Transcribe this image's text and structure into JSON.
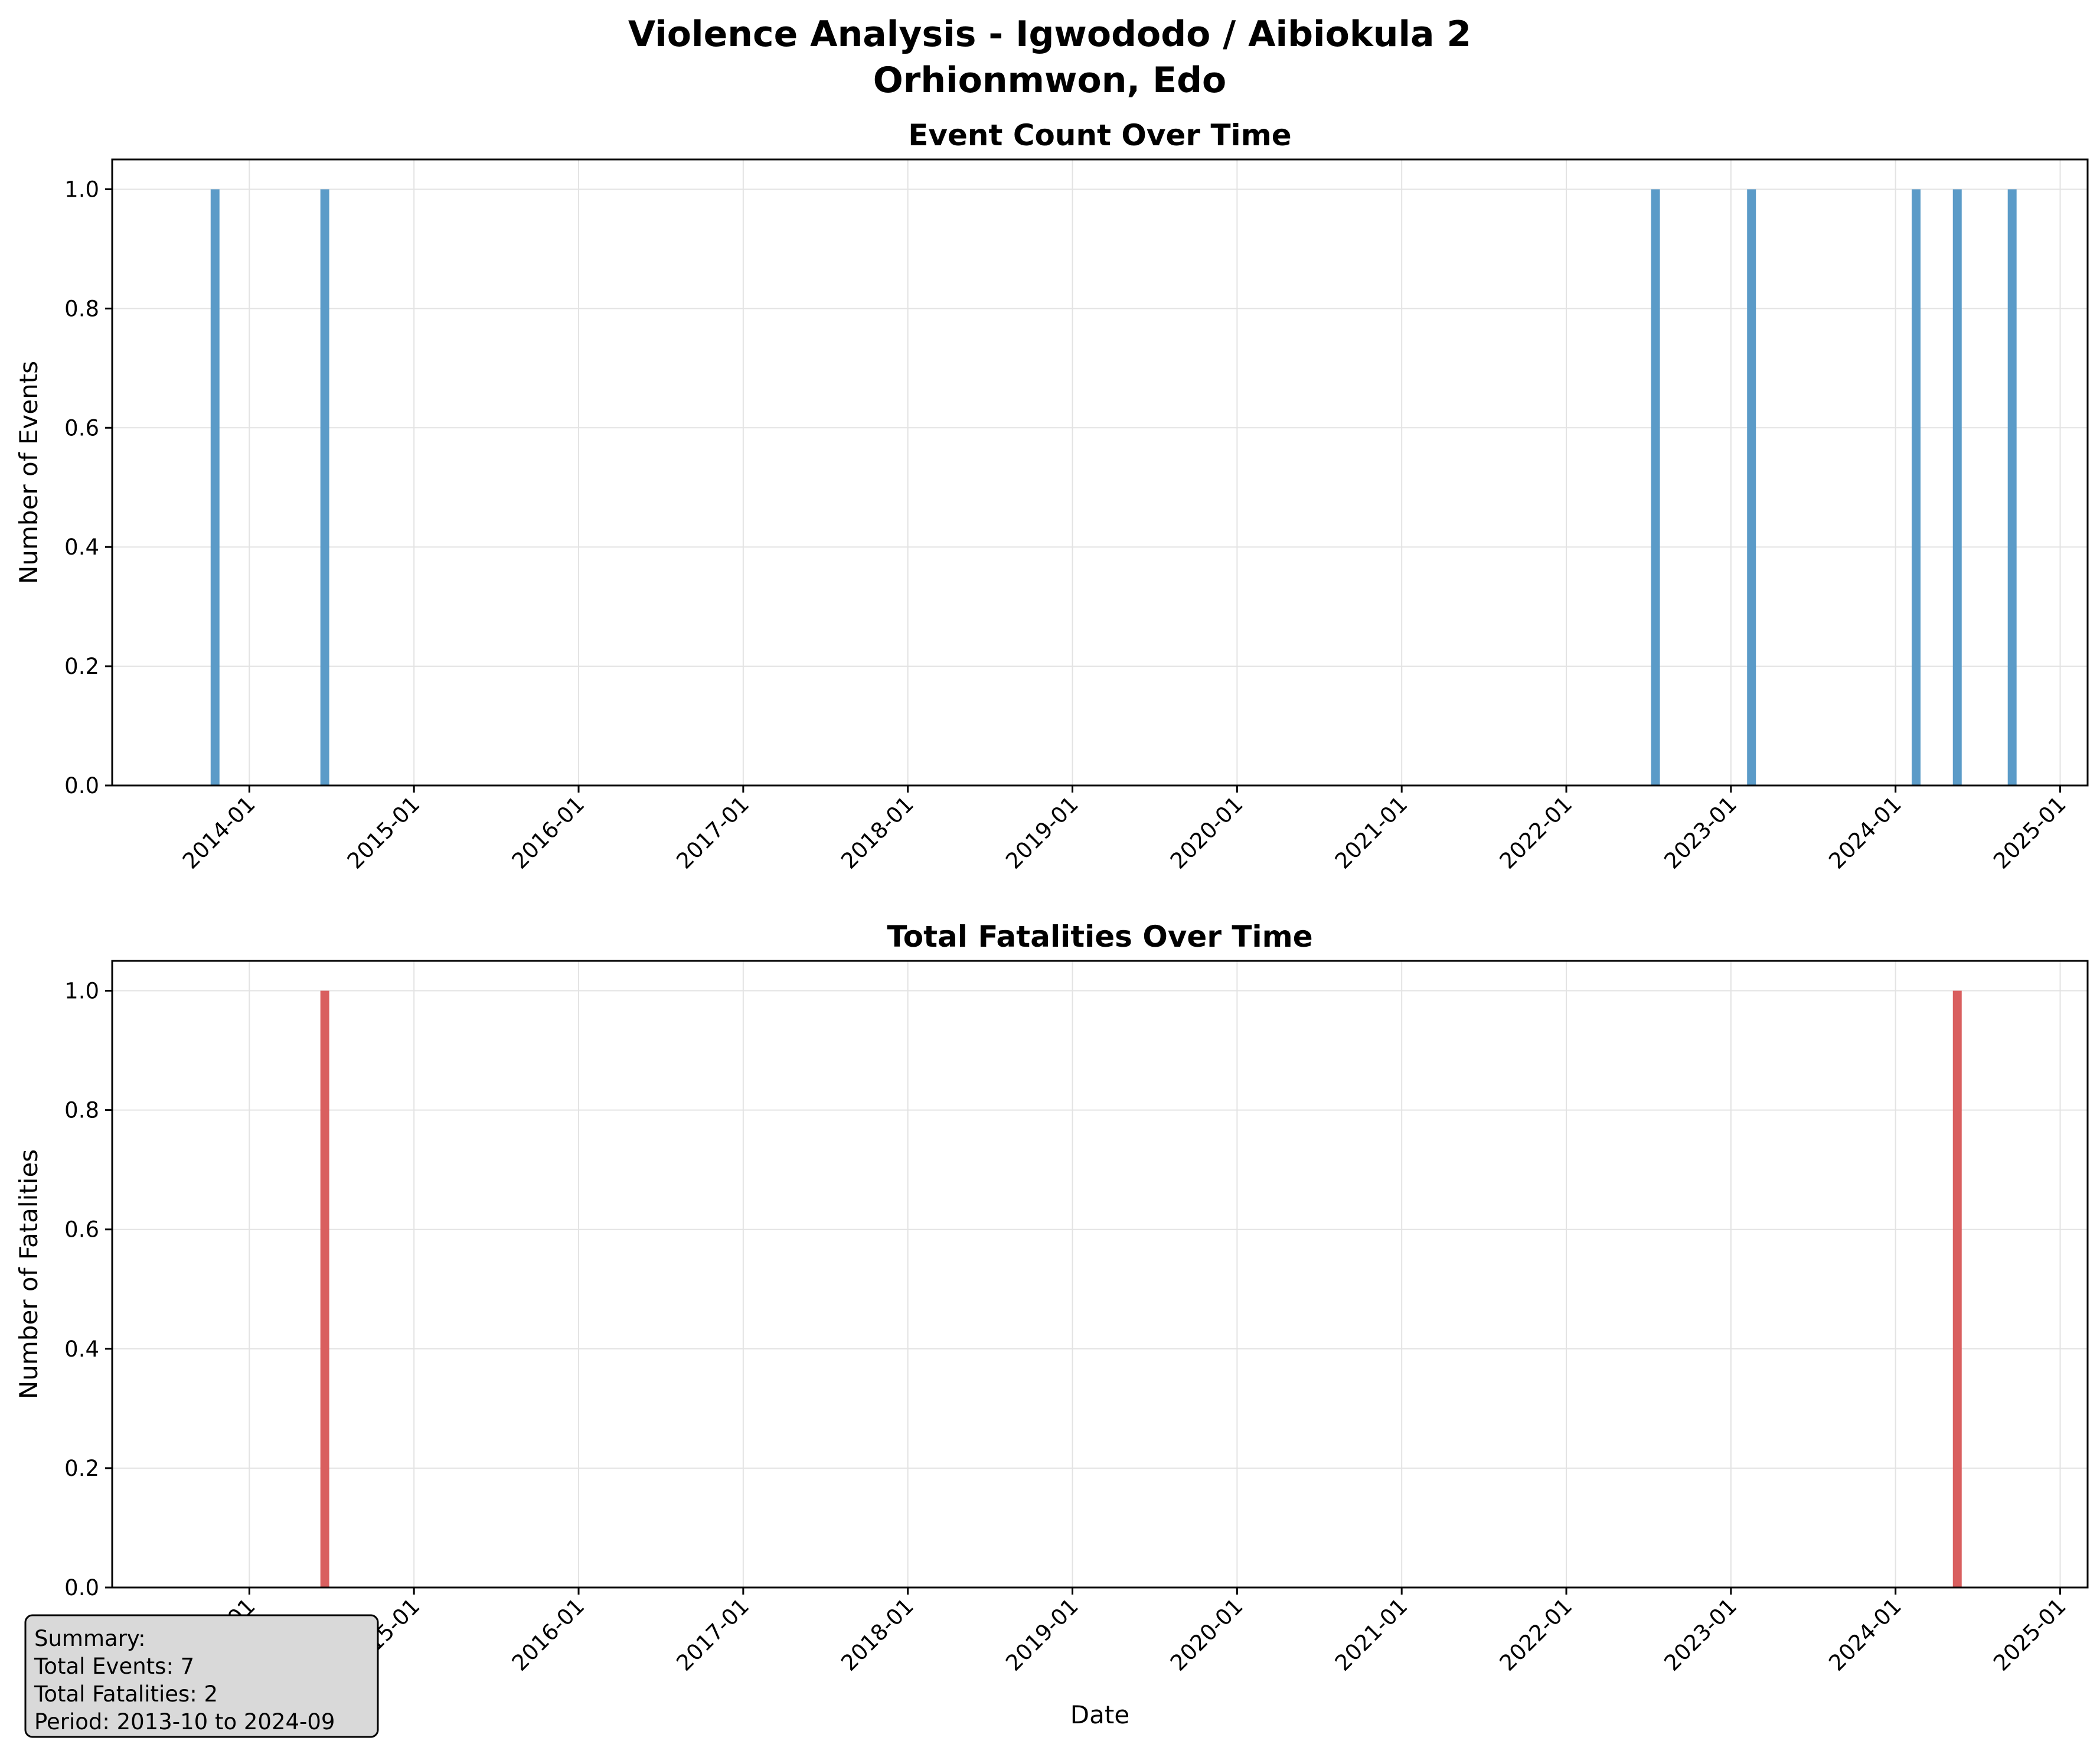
{
  "figure": {
    "suptitle_line1": "Violence Analysis - Igwododo / Aibiokula 2",
    "suptitle_line2": "Orhionmwon, Edo"
  },
  "summary": {
    "heading": "Summary:",
    "total_events": "Total Events: 7",
    "total_fatalities": "Total Fatalities: 2",
    "period": "Period: 2013-10 to 2024-09"
  },
  "chart_data": [
    {
      "type": "bar",
      "title": "Event Count Over Time",
      "xlabel": "",
      "ylabel": "Number of Events",
      "color": "#5b9bc8",
      "x": [
        "2013-10",
        "2014-06",
        "2022-07",
        "2023-02",
        "2024-02",
        "2024-05",
        "2024-09"
      ],
      "values": [
        1,
        1,
        1,
        1,
        1,
        1,
        1
      ],
      "xlim": [
        "2013-03",
        "2025-03"
      ],
      "ylim": [
        0,
        1.05
      ],
      "x_ticks": [
        "2014-01",
        "2015-01",
        "2016-01",
        "2017-01",
        "2018-01",
        "2019-01",
        "2020-01",
        "2021-01",
        "2022-01",
        "2023-01",
        "2024-01",
        "2025-01"
      ],
      "y_ticks": [
        "0.0",
        "0.2",
        "0.4",
        "0.6",
        "0.8",
        "1.0"
      ],
      "grid": true
    },
    {
      "type": "bar",
      "title": "Total Fatalities Over Time",
      "xlabel": "Date",
      "ylabel": "Number of Fatalities",
      "color": "#d95f5f",
      "x": [
        "2014-06",
        "2024-05"
      ],
      "values": [
        1,
        1
      ],
      "xlim": [
        "2013-03",
        "2025-03"
      ],
      "ylim": [
        0,
        1.05
      ],
      "x_ticks": [
        "2014-01",
        "2015-01",
        "2016-01",
        "2017-01",
        "2018-01",
        "2019-01",
        "2020-01",
        "2021-01",
        "2022-01",
        "2023-01",
        "2024-01",
        "2025-01"
      ],
      "y_ticks": [
        "0.0",
        "0.2",
        "0.4",
        "0.6",
        "0.8",
        "1.0"
      ],
      "grid": true
    }
  ]
}
